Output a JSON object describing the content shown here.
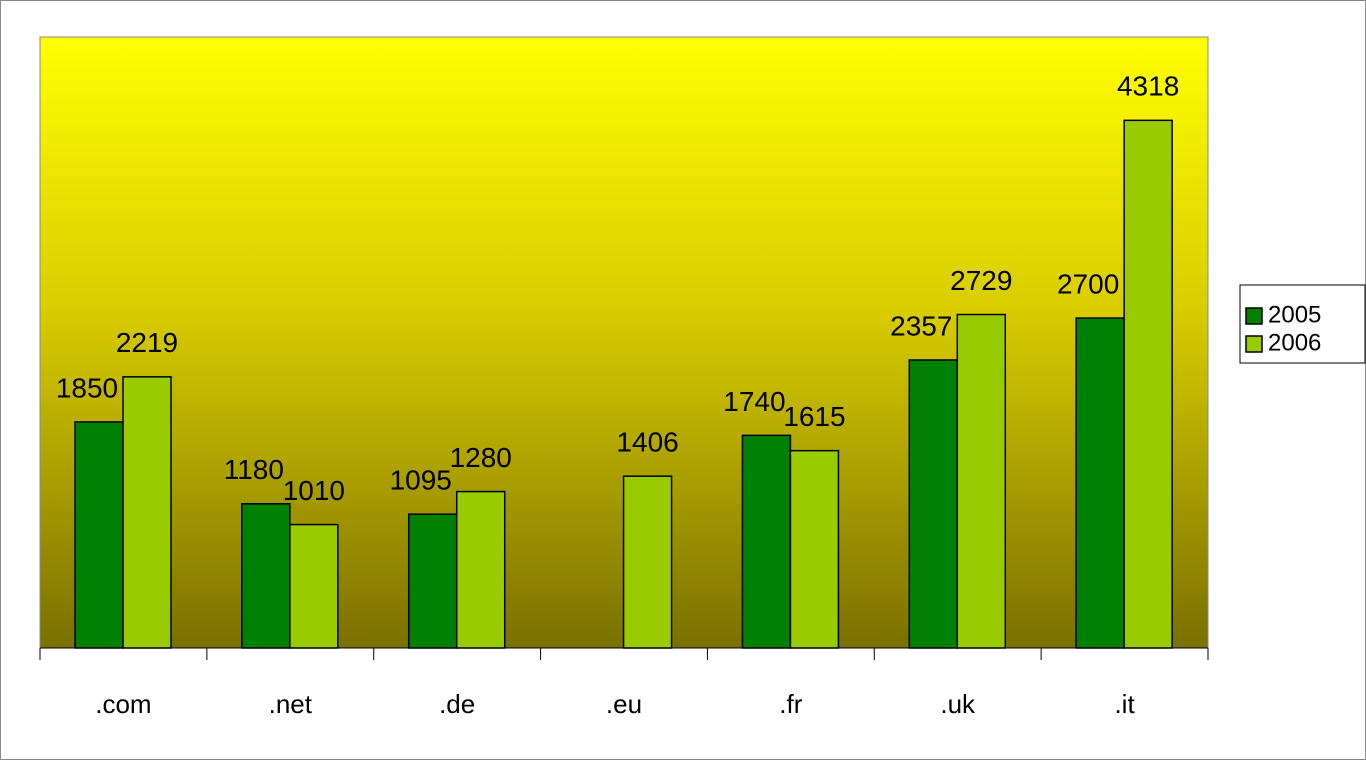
{
  "chart_data": {
    "type": "bar",
    "categories": [
      ".com",
      ".net",
      ".de",
      ".eu",
      ".fr",
      ".uk",
      ".it"
    ],
    "series": [
      {
        "name": "2005",
        "color": "#008000",
        "values": [
          1850,
          1180,
          1095,
          null,
          1740,
          2357,
          2700
        ]
      },
      {
        "name": "2006",
        "color": "#99cc00",
        "values": [
          2219,
          1010,
          1280,
          1406,
          1615,
          2729,
          4318
        ]
      }
    ],
    "ylim": [
      0,
      5000
    ],
    "legend": "right"
  }
}
